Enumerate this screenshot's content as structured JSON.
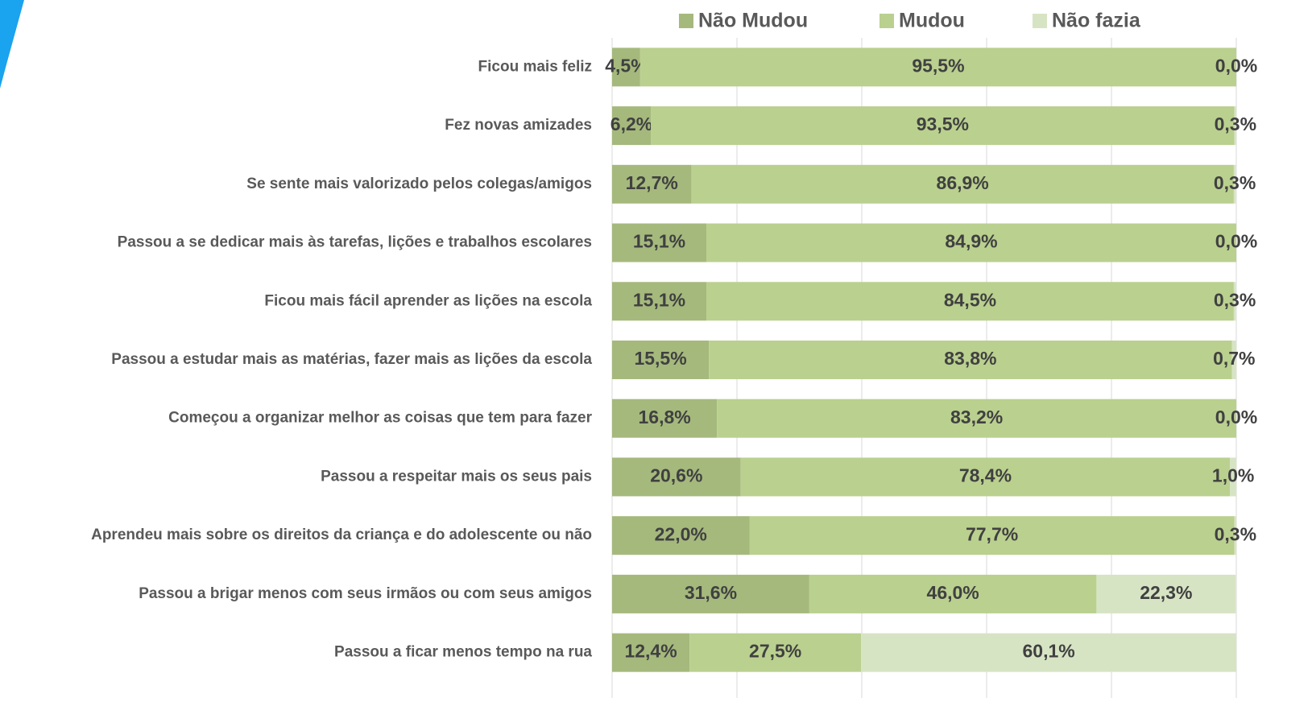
{
  "chart_data": {
    "type": "stacked_bar_horizontal",
    "categories": [
      "Ficou mais feliz",
      "Fez novas amizades",
      "Se sente mais valorizado pelos colegas/amigos",
      "Passou a se dedicar mais às tarefas, lições e trabalhos escolares",
      "Ficou mais fácil aprender as lições na escola",
      "Passou a estudar mais as matérias, fazer mais as lições da escola",
      "Começou a organizar melhor as coisas que tem para fazer",
      "Passou a respeitar mais os seus pais",
      "Aprendeu mais sobre os direitos da criança e do adolescente ou não",
      "Passou a brigar menos com seus irmãos ou com seus amigos",
      "Passou a ficar menos tempo na rua"
    ],
    "series": [
      {
        "name": "Não Mudou",
        "color": "#a5b97d",
        "values": [
          4.5,
          6.2,
          12.7,
          15.1,
          15.1,
          15.5,
          16.8,
          20.6,
          22.0,
          31.6,
          12.4
        ],
        "value_labels": [
          "4,5%",
          "6,2%",
          "12,7%",
          "15,1%",
          "15,1%",
          "15,5%",
          "16,8%",
          "20,6%",
          "22,0%",
          "31,6%",
          "12,4%"
        ]
      },
      {
        "name": "Mudou",
        "color": "#bad08f",
        "values": [
          95.5,
          93.5,
          86.9,
          84.9,
          84.5,
          83.8,
          83.2,
          78.4,
          77.7,
          46.0,
          27.5
        ],
        "value_labels": [
          "95,5%",
          "93,5%",
          "86,9%",
          "84,9%",
          "84,5%",
          "83,8%",
          "83,2%",
          "78,4%",
          "77,7%",
          "46,0%",
          "27,5%"
        ]
      },
      {
        "name": "Não fazia",
        "color": "#d7e4c4",
        "values": [
          0.0,
          0.3,
          0.3,
          0.0,
          0.3,
          0.7,
          0.0,
          1.0,
          0.3,
          22.3,
          60.1
        ],
        "value_labels": [
          "0,0%",
          "0,3%",
          "0,3%",
          "0,0%",
          "0,3%",
          "0,7%",
          "0,0%",
          "1,0%",
          "0,3%",
          "22,3%",
          "60,1%"
        ]
      }
    ],
    "xlim": [
      0,
      100
    ],
    "xticks": [
      0,
      20,
      40,
      60,
      80,
      100
    ],
    "grid": true,
    "legend": "top"
  }
}
